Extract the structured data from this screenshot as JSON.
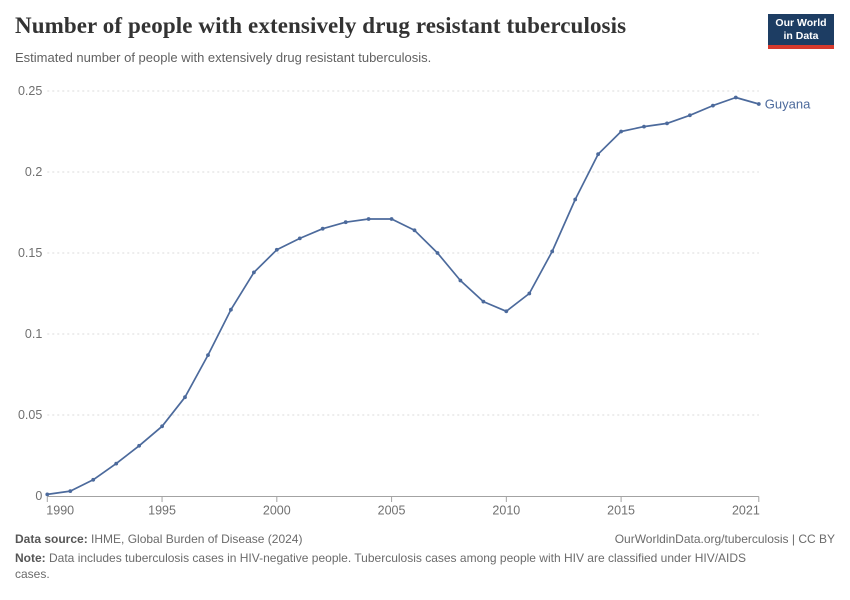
{
  "header": {
    "title": "Number of people with extensively drug resistant tuberculosis",
    "subtitle": "Estimated number of people with extensively drug resistant tuberculosis.",
    "logo": {
      "line1": "Our World",
      "line2": "in Data",
      "bg_color": "#1d3d63",
      "accent_color": "#d73a2d"
    }
  },
  "chart_data": {
    "type": "line",
    "title": "Number of people with extensively drug resistant tuberculosis",
    "xlabel": "",
    "ylabel": "",
    "xlim": [
      1990,
      2021
    ],
    "ylim": [
      0,
      0.25
    ],
    "grid": "horizontal-dashed",
    "legend_position": "end-of-line-label",
    "x_ticks": [
      1990,
      1995,
      2000,
      2005,
      2010,
      2015,
      2021
    ],
    "y_ticks": [
      0,
      0.05,
      0.1,
      0.15,
      0.2,
      0.25
    ],
    "y_tick_labels": [
      "0",
      "0.05",
      "0.1",
      "0.15",
      "0.2",
      "0.25"
    ],
    "series": [
      {
        "name": "Guyana",
        "color": "#4c6a9c",
        "x": [
          1990,
          1991,
          1992,
          1993,
          1994,
          1995,
          1996,
          1997,
          1998,
          1999,
          2000,
          2001,
          2002,
          2003,
          2004,
          2005,
          2006,
          2007,
          2008,
          2009,
          2010,
          2011,
          2012,
          2013,
          2014,
          2015,
          2016,
          2017,
          2018,
          2019,
          2020,
          2021
        ],
        "values": [
          0.001,
          0.003,
          0.01,
          0.02,
          0.031,
          0.043,
          0.061,
          0.087,
          0.115,
          0.138,
          0.152,
          0.159,
          0.165,
          0.169,
          0.171,
          0.171,
          0.164,
          0.15,
          0.133,
          0.12,
          0.114,
          0.125,
          0.151,
          0.183,
          0.211,
          0.225,
          0.228,
          0.23,
          0.235,
          0.241,
          0.246,
          0.242
        ]
      }
    ]
  },
  "footer": {
    "datasource_label": "Data source:",
    "datasource_value": " IHME, Global Burden of Disease (2024)",
    "link": "OurWorldinData.org/tuberculosis | CC BY",
    "note_label": "Note:",
    "note_value": " Data includes tuberculosis cases in HIV-negative people. Tuberculosis cases among people with HIV are classified under HIV/AIDS cases."
  }
}
